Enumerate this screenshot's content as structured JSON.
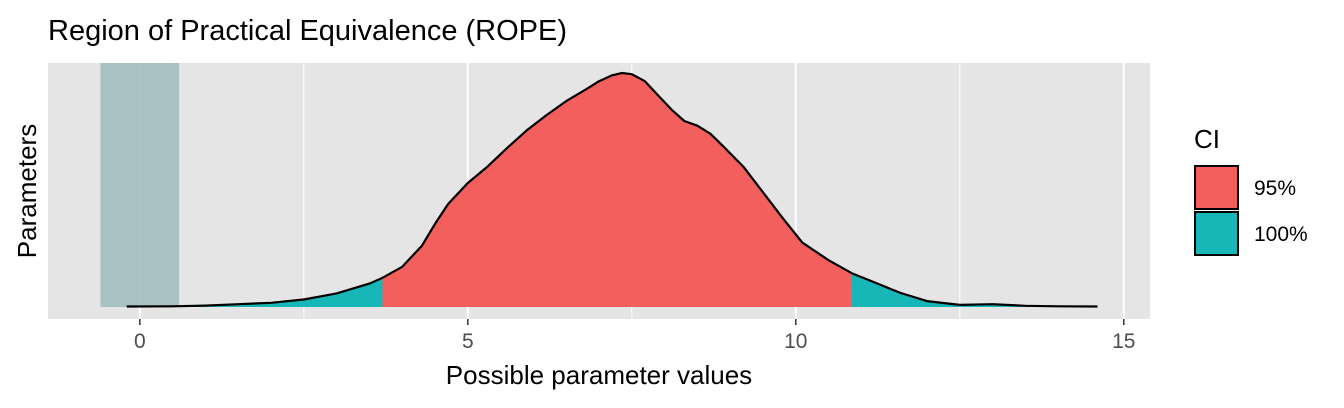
{
  "chart_data": {
    "type": "area",
    "title": "Region of Practical Equivalence (ROPE)",
    "xlabel": "Possible parameter values",
    "ylabel": "Parameters",
    "xlim": [
      -1.4,
      15.4
    ],
    "x_ticks": [
      0,
      5,
      10,
      15
    ],
    "x_tick_labels": [
      "0",
      "5",
      "10",
      "15"
    ],
    "grid": true,
    "rope": {
      "low": -0.6,
      "high": 0.6,
      "color": "#9DBBBD"
    },
    "ci": {
      "low": 3.7,
      "high": 10.85
    },
    "density": {
      "x": [
        -0.2,
        0.5,
        1.0,
        1.5,
        2.0,
        2.5,
        3.0,
        3.5,
        3.7,
        4.0,
        4.3,
        4.5,
        4.7,
        5.0,
        5.3,
        5.6,
        5.9,
        6.2,
        6.5,
        6.8,
        7.0,
        7.2,
        7.35,
        7.5,
        7.7,
        7.9,
        8.1,
        8.3,
        8.5,
        8.7,
        8.9,
        9.2,
        9.5,
        9.8,
        10.1,
        10.5,
        10.85,
        11.2,
        11.6,
        12.0,
        12.5,
        13.0,
        13.5,
        14.0,
        14.6
      ],
      "y": [
        0.002,
        0.003,
        0.006,
        0.012,
        0.018,
        0.032,
        0.058,
        0.1,
        0.125,
        0.172,
        0.262,
        0.355,
        0.44,
        0.53,
        0.6,
        0.68,
        0.755,
        0.82,
        0.88,
        0.93,
        0.965,
        0.99,
        1.0,
        0.995,
        0.965,
        0.905,
        0.845,
        0.795,
        0.775,
        0.74,
        0.685,
        0.6,
        0.49,
        0.38,
        0.275,
        0.2,
        0.145,
        0.105,
        0.06,
        0.025,
        0.009,
        0.012,
        0.005,
        0.003,
        0.002
      ]
    },
    "legend": {
      "title": "CI",
      "position": "right",
      "entries": [
        {
          "label": "95%",
          "color": "#F35F5C"
        },
        {
          "label": "100%",
          "color": "#17B7B7"
        }
      ]
    },
    "colors": {
      "panel": "#E5E5E5",
      "grid": "#FFFFFF",
      "outline": "#000000",
      "axis_text": "#4D4D4D"
    }
  }
}
